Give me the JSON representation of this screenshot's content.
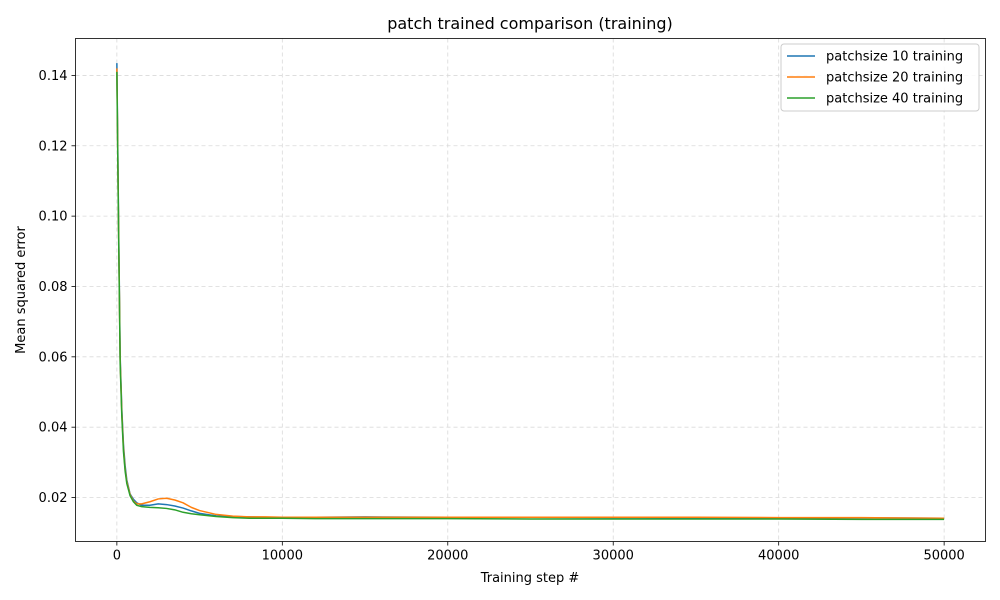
{
  "chart_data": {
    "type": "line",
    "title": "patch trained comparison (training)",
    "xlabel": "Training step #",
    "ylabel": "Mean squared error",
    "xlim": [
      -2500,
      52500
    ],
    "ylim": [
      0.0075,
      0.1505
    ],
    "xticks": [
      0,
      10000,
      20000,
      30000,
      40000,
      50000
    ],
    "yticks": [
      0.02,
      0.04,
      0.06,
      0.08,
      0.1,
      0.12,
      0.14
    ],
    "ytick_labels": [
      "0.02",
      "0.04",
      "0.06",
      "0.08",
      "0.10",
      "0.12",
      "0.14"
    ],
    "grid": true,
    "legend_position": "upper-right",
    "series": [
      {
        "name": "patchsize 10 training",
        "color": "#1f77b4",
        "x": [
          0,
          100,
          200,
          300,
          400,
          500,
          600,
          800,
          1000,
          1200,
          1500,
          2000,
          2500,
          3000,
          3500,
          4000,
          4500,
          5000,
          6000,
          7000,
          8000,
          9000,
          10000,
          12000,
          15000,
          20000,
          25000,
          30000,
          35000,
          40000,
          45000,
          50000
        ],
        "values": [
          0.1435,
          0.1,
          0.06,
          0.045,
          0.035,
          0.029,
          0.025,
          0.021,
          0.0195,
          0.0185,
          0.0178,
          0.0178,
          0.0182,
          0.018,
          0.0176,
          0.017,
          0.0162,
          0.0155,
          0.0148,
          0.0146,
          0.0145,
          0.0144,
          0.0144,
          0.0144,
          0.0145,
          0.0144,
          0.0144,
          0.0143,
          0.0142,
          0.0142,
          0.0142,
          0.0141
        ]
      },
      {
        "name": "patchsize 20 training",
        "color": "#ff7f0e",
        "x": [
          0,
          100,
          200,
          300,
          400,
          500,
          600,
          800,
          1000,
          1200,
          1500,
          2000,
          2500,
          3000,
          3500,
          4000,
          4500,
          5000,
          6000,
          7000,
          8000,
          9000,
          10000,
          12000,
          15000,
          20000,
          25000,
          30000,
          35000,
          40000,
          45000,
          50000
        ],
        "values": [
          0.142,
          0.098,
          0.059,
          0.044,
          0.034,
          0.028,
          0.0245,
          0.0208,
          0.019,
          0.0182,
          0.0182,
          0.0188,
          0.0196,
          0.0198,
          0.0193,
          0.0185,
          0.0172,
          0.0163,
          0.0152,
          0.0147,
          0.0145,
          0.0145,
          0.0144,
          0.0144,
          0.0144,
          0.0144,
          0.0144,
          0.0144,
          0.0144,
          0.0143,
          0.0143,
          0.0141
        ]
      },
      {
        "name": "patchsize 40 training",
        "color": "#2ca02c",
        "x": [
          0,
          100,
          200,
          300,
          400,
          500,
          600,
          800,
          1000,
          1200,
          1500,
          2000,
          2500,
          3000,
          3500,
          4000,
          4500,
          5000,
          6000,
          7000,
          8000,
          9000,
          10000,
          12000,
          15000,
          20000,
          25000,
          30000,
          35000,
          40000,
          45000,
          50000
        ],
        "values": [
          0.141,
          0.097,
          0.058,
          0.043,
          0.033,
          0.0275,
          0.024,
          0.0205,
          0.0188,
          0.0178,
          0.0174,
          0.0172,
          0.0171,
          0.0169,
          0.0165,
          0.0158,
          0.0154,
          0.0151,
          0.0146,
          0.0143,
          0.0141,
          0.0141,
          0.0141,
          0.014,
          0.014,
          0.014,
          0.0139,
          0.0139,
          0.0139,
          0.0139,
          0.0138,
          0.0138
        ]
      }
    ]
  }
}
